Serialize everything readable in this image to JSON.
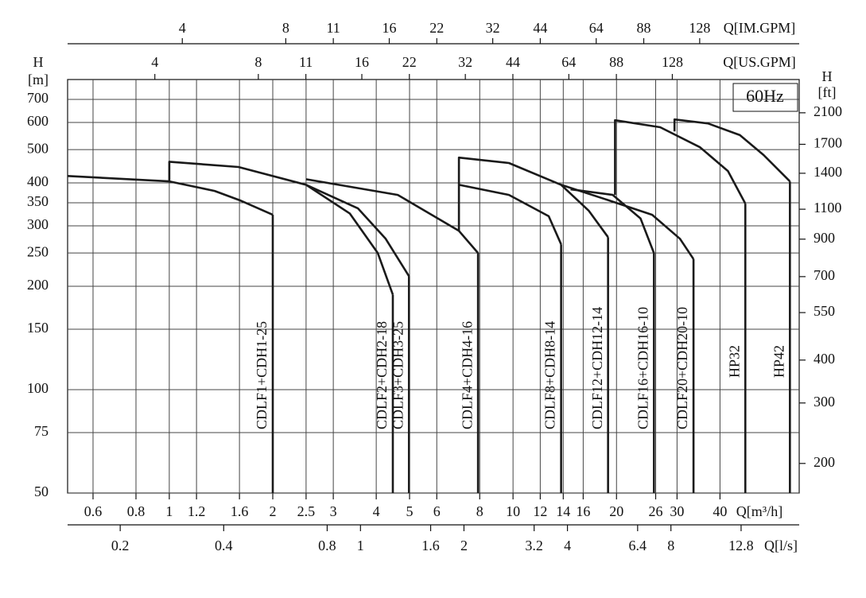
{
  "chart_data": {
    "type": "line",
    "xscale": "log",
    "yscale": "log",
    "grid": true,
    "x_label": "Q[m³/h]",
    "y_label_top": "H",
    "y_label_bottom": "[m]",
    "y2_label_top": "H",
    "y2_label_bottom": "[ft]",
    "annotation": "60Hz",
    "xlim": [
      0.506,
      68
    ],
    "xticks": [
      0.6,
      0.8,
      1,
      1.2,
      1.6,
      2,
      2.5,
      3,
      4,
      5,
      6,
      8,
      10,
      12,
      14,
      16,
      20,
      26,
      30,
      40
    ],
    "ylim": [
      50,
      800
    ],
    "yticks": [
      50,
      75,
      100,
      150,
      200,
      250,
      300,
      350,
      400,
      500,
      600,
      700
    ],
    "y2lim": [
      164,
      2625
    ],
    "y2ticks": [
      200,
      300,
      400,
      550,
      700,
      900,
      1100,
      1400,
      1700,
      2100
    ],
    "top_axes": [
      {
        "label": "Q[IM.GPM]",
        "lim": [
          1.855,
          249.3
        ],
        "ticks": [
          4,
          8,
          11,
          16,
          22,
          32,
          44,
          64,
          88,
          128
        ]
      },
      {
        "label": "Q[US.GPM]",
        "lim": [
          2.23,
          299.4
        ],
        "ticks": [
          4,
          8,
          11,
          16,
          22,
          32,
          44,
          64,
          88,
          128
        ]
      }
    ],
    "bottom_axis": {
      "label": "Q[l/s]",
      "lim": [
        0.1406,
        18.89
      ],
      "ticks": [
        0.2,
        0.4,
        0.8,
        1,
        1.6,
        2,
        3.2,
        4,
        6.4,
        8,
        12.8
      ]
    },
    "series": [
      {
        "name": "CDLF1+CDH1-25",
        "color": "#1a1a1a",
        "x": [
          0.506,
          1,
          1.355,
          1.615,
          2.0
        ],
        "values": [
          419,
          404,
          379,
          355,
          323
        ]
      },
      {
        "name": "CDLF2+CDH2-18",
        "color": "#1a1a1a",
        "x": [
          1,
          1,
          1.59,
          2.5,
          3.35,
          4.04,
          4.47
        ],
        "values": [
          404,
          461,
          445,
          395,
          326,
          250,
          189
        ]
      },
      {
        "name": "CDLF3+CDH3-25",
        "color": "#1a1a1a",
        "x": [
          2.5,
          3.54,
          4.26,
          4.98
        ],
        "values": [
          395,
          337,
          275,
          214
        ]
      },
      {
        "name": "CDLF4+CDH4-16",
        "color": "#1a1a1a",
        "x": [
          2.5,
          4.62,
          6.96,
          7.91
        ],
        "values": [
          410,
          369,
          290,
          250
        ]
      },
      {
        "name": "CDLF8+CDH8-14",
        "color": "#1a1a1a",
        "x": [
          6.96,
          6.96,
          9.73,
          12.7,
          13.8
        ],
        "values": [
          290,
          395,
          369,
          320,
          265
        ]
      },
      {
        "name": "CDLF12+CDH12-14",
        "color": "#1a1a1a",
        "x": [
          6.96,
          6.96,
          9.73,
          13.8,
          16.6,
          18.9
        ],
        "values": [
          395,
          474,
          457,
          395,
          332,
          278
        ]
      },
      {
        "name": "CDLF16+CDH16-10",
        "color": "#1a1a1a",
        "x": [
          14.7,
          19.5,
          23.5,
          25.7
        ],
        "values": [
          383,
          369,
          315,
          250
        ]
      },
      {
        "name": "CDLF20+CDH20-10",
        "color": "#1a1a1a",
        "x": [
          13.8,
          18.5,
          25.4,
          30.6,
          33.5
        ],
        "values": [
          395,
          359,
          323,
          275,
          240
        ]
      },
      {
        "name": "HP32",
        "color": "#1a1a1a",
        "x": [
          19.8,
          19.8,
          26.8,
          35.0,
          42.2,
          47.4
        ],
        "values": [
          369,
          609,
          581,
          508,
          433,
          348
        ]
      },
      {
        "name": "HP42",
        "color": "#1a1a1a",
        "x": [
          29.5,
          29.5,
          36.9,
          45.7,
          53.6,
          63.9
        ],
        "values": [
          565,
          612,
          596,
          551,
          482,
          404
        ]
      }
    ]
  }
}
